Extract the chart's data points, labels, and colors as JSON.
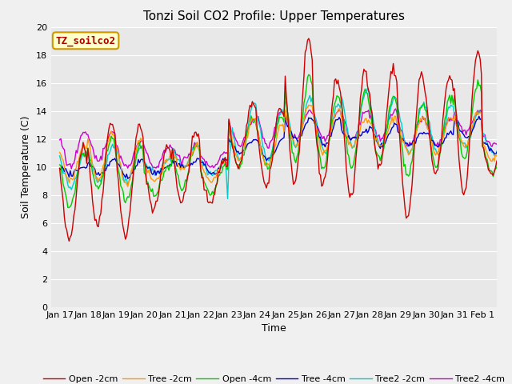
{
  "title": "Tonzi Soil CO2 Profile: Upper Temperatures",
  "xlabel": "Time",
  "ylabel": "Soil Temperature (C)",
  "ylim": [
    0,
    20
  ],
  "x_tick_labels": [
    "Jan 17",
    "Jan 18",
    "Jan 19",
    "Jan 20",
    "Jan 21",
    "Jan 22",
    "Jan 23",
    "Jan 24",
    "Jan 25",
    "Jan 26",
    "Jan 27",
    "Jan 28",
    "Jan 29",
    "Jan 30",
    "Jan 31",
    "Feb 1"
  ],
  "series_colors": {
    "Open -2cm": "#cc0000",
    "Tree -2cm": "#ff9900",
    "Open -4cm": "#00cc00",
    "Tree -4cm": "#0000cc",
    "Tree2 -2cm": "#00cccc",
    "Tree2 -4cm": "#cc00cc"
  },
  "legend_label": "TZ_soilco2",
  "legend_bg": "#ffffcc",
  "legend_border": "#cc9900",
  "bg_color": "#e8e8e8",
  "grid_color": "#ffffff",
  "title_fontsize": 11,
  "axis_fontsize": 9,
  "tick_fontsize": 8
}
